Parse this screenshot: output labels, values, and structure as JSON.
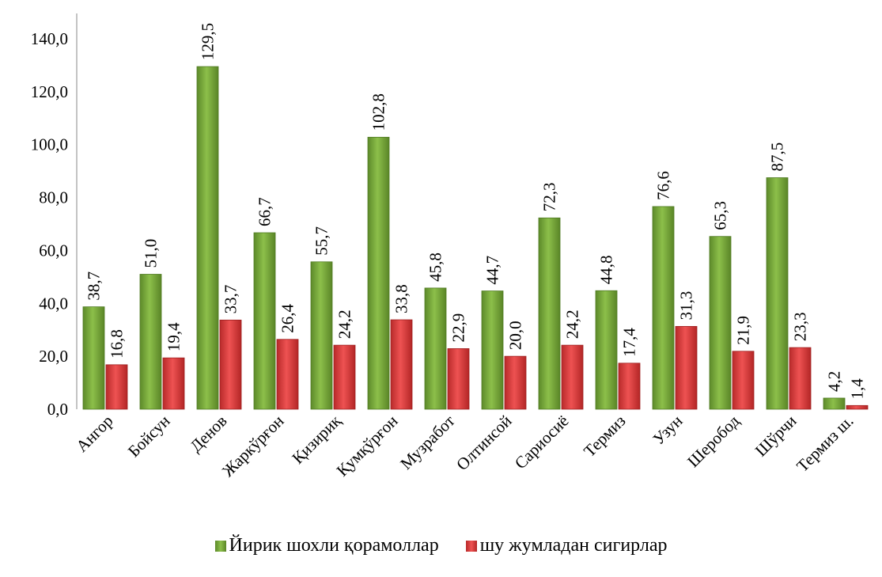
{
  "chart_data": {
    "type": "bar",
    "categories": [
      "Ангор",
      "Бойсун",
      "Денов",
      "Жаркўрғон",
      "Қизириқ",
      "Қумқўрғон",
      "Музработ",
      "Олтинсой",
      "Сариосиё",
      "Термиз",
      "Узун",
      "Шеробод",
      "Шўрчи",
      "Термиз ш."
    ],
    "series": [
      {
        "name": "Йирик шохли қорамоллар",
        "color": "#76a13a",
        "values": [
          38.7,
          51.0,
          129.5,
          66.7,
          55.7,
          102.8,
          45.8,
          44.7,
          72.3,
          44.8,
          76.6,
          65.3,
          87.5,
          4.2
        ],
        "labels": [
          "38,7",
          "51,0",
          "129,5",
          "66,7",
          "55,7",
          "102,8",
          "45,8",
          "44,7",
          "72,3",
          "44,8",
          "76,6",
          "65,3",
          "87,5",
          "4,2"
        ]
      },
      {
        "name": "шу жумладан сигирлар",
        "color": "#d63b3b",
        "values": [
          16.8,
          19.4,
          33.7,
          26.4,
          24.2,
          33.8,
          22.9,
          20.0,
          24.2,
          17.4,
          31.3,
          21.9,
          23.3,
          1.4
        ],
        "labels": [
          "16,8",
          "19,4",
          "33,7",
          "26,4",
          "24,2",
          "33,8",
          "22,9",
          "20,0",
          "24,2",
          "17,4",
          "31,3",
          "21,9",
          "23,3",
          "1,4"
        ]
      }
    ],
    "ylim": [
      0,
      140
    ],
    "yticks": [
      0,
      20,
      40,
      60,
      80,
      100,
      120,
      140
    ],
    "ytick_labels": [
      "0,0",
      "20,0",
      "40,0",
      "60,0",
      "80,0",
      "100,0",
      "120,0",
      "140,0"
    ],
    "grid": false,
    "legend_position": "bottom",
    "title": "",
    "xlabel": "",
    "ylabel": ""
  }
}
